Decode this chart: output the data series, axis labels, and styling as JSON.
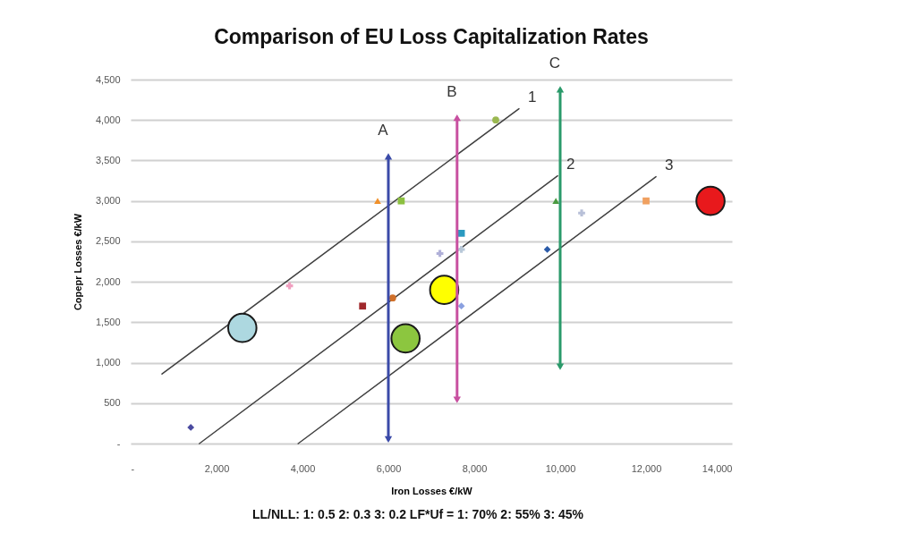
{
  "chart_data": {
    "type": "scatter",
    "title": "Comparison of EU Loss Capitalization Rates",
    "xlabel": "Iron Losses €/kW",
    "ylabel": "Copepr Losses €/kW",
    "xlim": [
      0,
      14000
    ],
    "xticks": [
      {
        "value": 0,
        "label": "-"
      },
      {
        "value": 2000,
        "label": "2,000"
      },
      {
        "value": 4000,
        "label": "4,000"
      },
      {
        "value": 6000,
        "label": "6,000"
      },
      {
        "value": 8000,
        "label": "8,000"
      },
      {
        "value": 10000,
        "label": "10,000"
      },
      {
        "value": 12000,
        "label": "12,000"
      },
      {
        "value": 14000,
        "label": "14,000"
      }
    ],
    "ylim": [
      0,
      4500
    ],
    "yticks": [
      {
        "value": 0,
        "label": "-"
      },
      {
        "value": 500,
        "label": "500"
      },
      {
        "value": 1000,
        "label": "1,000"
      },
      {
        "value": 1500,
        "label": "1,500"
      },
      {
        "value": 2000,
        "label": "2,000"
      },
      {
        "value": 2500,
        "label": "2,500"
      },
      {
        "value": 3000,
        "label": "3,000"
      },
      {
        "value": 3500,
        "label": "3,500"
      },
      {
        "value": 4000,
        "label": "4,000"
      },
      {
        "value": 4500,
        "label": "4,500"
      }
    ],
    "grid": "y",
    "series": [
      {
        "type": "line",
        "name": "1",
        "color": "#404040",
        "x": [
          730,
          9040
        ],
        "values": [
          860,
          4140
        ]
      },
      {
        "type": "line",
        "name": "2",
        "color": "#404040",
        "x": [
          1600,
          9940
        ],
        "values": [
          0,
          3310
        ]
      },
      {
        "type": "line",
        "name": "3",
        "color": "#404040",
        "x": [
          3900,
          12230
        ],
        "values": [
          0,
          3300
        ]
      },
      {
        "marker": "diamond",
        "color": "#4a4aa0",
        "x": [
          1400
        ],
        "values": [
          200
        ]
      },
      {
        "marker": "cross",
        "color": "#f0a0c0",
        "x": [
          3700
        ],
        "values": [
          1950
        ]
      },
      {
        "marker": "triangle",
        "color": "#f0902a",
        "x": [
          5750
        ],
        "values": [
          3000
        ]
      },
      {
        "marker": "square",
        "color": "#a0282c",
        "x": [
          5400
        ],
        "values": [
          1700
        ]
      },
      {
        "marker": "square",
        "color": "#8cc040",
        "x": [
          6300
        ],
        "values": [
          3000
        ]
      },
      {
        "marker": "circle",
        "color": "#9ab850",
        "x": [
          8500
        ],
        "values": [
          4000
        ]
      },
      {
        "marker": "circle",
        "color": "#d0702a",
        "x": [
          6100
        ],
        "values": [
          1800
        ]
      },
      {
        "marker": "cross",
        "color": "#b0b0d8",
        "x": [
          7200
        ],
        "values": [
          2350
        ]
      },
      {
        "marker": "square",
        "color": "#2a9ac0",
        "x": [
          7700
        ],
        "values": [
          2600
        ]
      },
      {
        "marker": "cross",
        "color": "#b8c8d8",
        "x": [
          7700
        ],
        "values": [
          2400
        ]
      },
      {
        "marker": "diamond",
        "color": "#8aa0e0",
        "x": [
          7700
        ],
        "values": [
          1700
        ]
      },
      {
        "marker": "triangle",
        "color": "#4a9a40",
        "x": [
          9900
        ],
        "values": [
          3000
        ]
      },
      {
        "marker": "diamond",
        "color": "#2a5aa8",
        "x": [
          9700
        ],
        "values": [
          2400
        ]
      },
      {
        "marker": "cross",
        "color": "#b8c0d8",
        "x": [
          10500
        ],
        "values": [
          2850
        ]
      },
      {
        "marker": "square",
        "color": "#f0a060",
        "x": [
          12000
        ],
        "values": [
          3000
        ]
      },
      {
        "type": "bubble",
        "x": [
          2600,
          6400,
          7300,
          13500
        ],
        "values": [
          1430,
          1300,
          1900,
          3000
        ],
        "sizes": [
          1,
          1,
          1,
          1
        ],
        "colors": [
          "#add8e0",
          "#8cc63f",
          "#ffff00",
          "#e8191c"
        ]
      },
      {
        "type": "line",
        "name": "A",
        "marker": "triangle",
        "color": "#3a4aa8",
        "x": [
          6000,
          6000
        ],
        "values": [
          50,
          3550
        ]
      },
      {
        "type": "line",
        "name": "B",
        "marker": "triangle",
        "color": "#c850a0",
        "x": [
          7600,
          7600
        ],
        "values": [
          540,
          4030
        ]
      },
      {
        "type": "line",
        "name": "C",
        "marker": "triangle",
        "color": "#2a9a6a",
        "x": [
          10000,
          10000
        ],
        "values": [
          950,
          4380
        ]
      }
    ],
    "annotations": [
      "LL/NLL: 1:  0.5    2: 0.3   3: 0.2   LF*Uf  =  1: 70%   2: 55%  3: 45%"
    ]
  }
}
